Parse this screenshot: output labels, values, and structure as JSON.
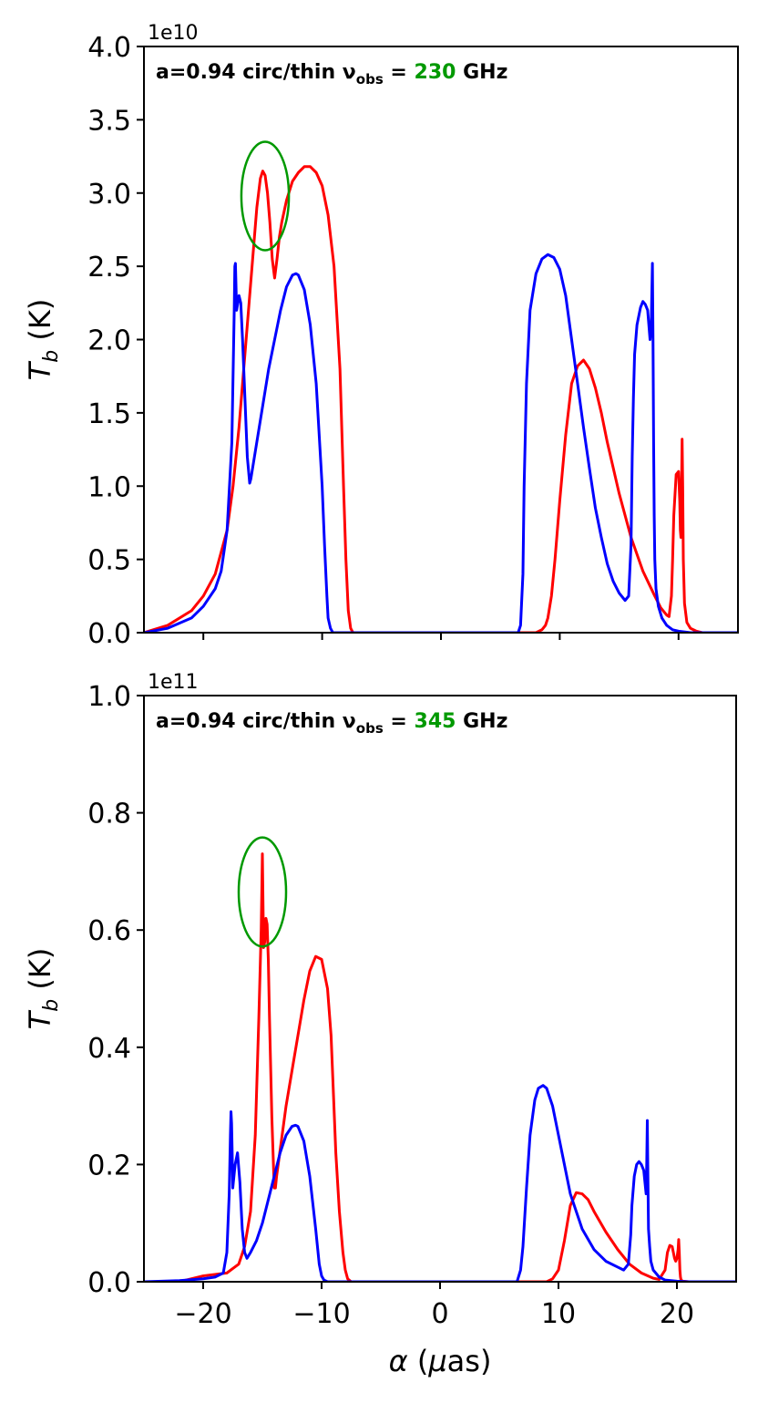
{
  "chart_data": [
    {
      "type": "line",
      "annotation": {
        "prefix": "a=0.94 circ/thin ",
        "nu": "ν",
        "sub": "obs",
        "eq": " = ",
        "freq": "230",
        "unit": " GHz",
        "freq_color": "#009900"
      },
      "ylabel": "T",
      "ylabel_sub": "b",
      "ylabel_unit": " (K)",
      "offset_text": "1e10",
      "xlim": [
        -25,
        25
      ],
      "ylim": [
        0,
        4.0
      ],
      "yticks": [
        "0.0",
        "0.5",
        "1.0",
        "1.5",
        "2.0",
        "2.5",
        "3.0",
        "3.5",
        "4.0"
      ],
      "ytick_values": [
        0,
        0.5,
        1.0,
        1.5,
        2.0,
        2.5,
        3.0,
        3.5,
        4.0
      ],
      "xtick_values": [
        -20,
        -10,
        0,
        10,
        20
      ],
      "show_xticklabels": false,
      "series": [
        {
          "color": "#ff0000",
          "x": [
            -25,
            -23,
            -21,
            -20,
            -19,
            -18,
            -17.5,
            -17,
            -16.5,
            -16,
            -15.5,
            -15.2,
            -15,
            -14.8,
            -14.6,
            -14.4,
            -14.2,
            -14,
            -13.8,
            -13.6,
            -13.4,
            -13,
            -12.5,
            -12,
            -11.5,
            -11,
            -10.5,
            -10,
            -9.5,
            -9,
            -8.5,
            -8.2,
            -8,
            -7.8,
            -7.6,
            -7.4,
            -7.2,
            -7,
            -5,
            0,
            8,
            8.5,
            8.8,
            9,
            9.3,
            9.6,
            10,
            10.5,
            11,
            11.5,
            12,
            12.5,
            13,
            13.5,
            14,
            15,
            16,
            17,
            18,
            18.5,
            19,
            19.2,
            19.4,
            19.5,
            19.6,
            19.8,
            20,
            20.1,
            20.15,
            20.2,
            20.25,
            20.3,
            20.35,
            20.4,
            20.5,
            20.7,
            21,
            21.5,
            22,
            25
          ],
          "y": [
            0.0,
            0.05,
            0.15,
            0.25,
            0.4,
            0.7,
            1.0,
            1.4,
            1.9,
            2.4,
            2.9,
            3.1,
            3.15,
            3.12,
            3.0,
            2.8,
            2.55,
            2.42,
            2.55,
            2.7,
            2.8,
            2.95,
            3.08,
            3.14,
            3.18,
            3.18,
            3.14,
            3.05,
            2.85,
            2.5,
            1.8,
            1.0,
            0.5,
            0.15,
            0.03,
            0.0,
            0.0,
            0.0,
            0.0,
            0.0,
            0.0,
            0.02,
            0.05,
            0.1,
            0.25,
            0.5,
            0.9,
            1.35,
            1.7,
            1.82,
            1.86,
            1.8,
            1.67,
            1.5,
            1.3,
            0.95,
            0.65,
            0.42,
            0.25,
            0.17,
            0.12,
            0.11,
            0.25,
            0.5,
            0.8,
            1.08,
            1.1,
            0.9,
            0.7,
            0.65,
            1.0,
            1.32,
            1.0,
            0.5,
            0.2,
            0.07,
            0.03,
            0.01,
            0.0,
            0.0
          ]
        },
        {
          "color": "#0000ff",
          "x": [
            -25,
            -23,
            -21,
            -20,
            -19,
            -18.5,
            -18,
            -17.6,
            -17.4,
            -17.35,
            -17.3,
            -17.2,
            -17.0,
            -16.85,
            -16.7,
            -16.5,
            -16.3,
            -16.1,
            -16.0,
            -15.5,
            -15,
            -14.5,
            -14,
            -13.5,
            -13,
            -12.5,
            -12.2,
            -12,
            -11.5,
            -11,
            -10.5,
            -10,
            -9.8,
            -9.6,
            -9.5,
            -9.3,
            -9.1,
            -9.0,
            -5,
            0,
            6.5,
            6.7,
            6.9,
            7,
            7.2,
            7.5,
            8,
            8.5,
            9,
            9.5,
            10,
            10.5,
            11,
            11.5,
            12,
            12.5,
            13,
            13.5,
            14,
            14.5,
            15,
            15.5,
            15.8,
            16,
            16.1,
            16.2,
            16.3,
            16.5,
            16.8,
            17,
            17.2,
            17.4,
            17.6,
            17.7,
            17.8,
            17.85,
            17.9,
            17.95,
            18.0,
            18.1,
            18.3,
            18.6,
            19.0,
            19.5,
            20,
            21,
            22,
            25
          ],
          "y": [
            0.0,
            0.03,
            0.1,
            0.18,
            0.3,
            0.42,
            0.7,
            1.3,
            2.2,
            2.5,
            2.52,
            2.2,
            2.3,
            2.25,
            2.0,
            1.6,
            1.2,
            1.02,
            1.05,
            1.3,
            1.55,
            1.8,
            2.0,
            2.2,
            2.36,
            2.44,
            2.45,
            2.44,
            2.34,
            2.1,
            1.7,
            1.0,
            0.6,
            0.25,
            0.1,
            0.03,
            0.0,
            0.0,
            0.0,
            0.0,
            0.0,
            0.05,
            0.4,
            1.0,
            1.7,
            2.2,
            2.45,
            2.55,
            2.58,
            2.56,
            2.48,
            2.3,
            2.0,
            1.7,
            1.4,
            1.12,
            0.85,
            0.65,
            0.47,
            0.35,
            0.27,
            0.22,
            0.25,
            0.6,
            1.2,
            1.6,
            1.9,
            2.1,
            2.22,
            2.26,
            2.24,
            2.2,
            2.0,
            2.1,
            2.52,
            2.0,
            1.3,
            0.8,
            0.5,
            0.3,
            0.18,
            0.1,
            0.05,
            0.02,
            0.01,
            0.0,
            0.0,
            0.0
          ]
        }
      ],
      "ellipse": {
        "cx": -14.8,
        "cy": 2.98,
        "rx": 2.0,
        "ry": 0.37,
        "color": "#009900"
      }
    },
    {
      "type": "line",
      "annotation": {
        "prefix": "a=0.94 circ/thin ",
        "nu": "ν",
        "sub": "obs",
        "eq": " = ",
        "freq": "345",
        "unit": " GHz",
        "freq_color": "#009900"
      },
      "ylabel": "T",
      "ylabel_sub": "b",
      "ylabel_unit": " (K)",
      "offset_text": "1e11",
      "xlabel_greek": "α",
      "xlabel_unit": " (",
      "xlabel_mu": "μ",
      "xlabel_rest": "as)",
      "xlim": [
        -25,
        25
      ],
      "ylim": [
        0,
        1.0
      ],
      "yticks": [
        "0.0",
        "0.2",
        "0.4",
        "0.6",
        "0.8",
        "1.0"
      ],
      "ytick_values": [
        0,
        0.2,
        0.4,
        0.6,
        0.8,
        1.0
      ],
      "xticks": [
        "−20",
        "−10",
        "0",
        "10",
        "20"
      ],
      "xtick_values": [
        -20,
        -10,
        0,
        10,
        20
      ],
      "show_xticklabels": true,
      "series": [
        {
          "color": "#ff0000",
          "x": [
            -25,
            -22,
            -20,
            -18,
            -17,
            -16.5,
            -16,
            -15.6,
            -15.3,
            -15.1,
            -15.0,
            -14.95,
            -14.9,
            -14.8,
            -14.7,
            -14.6,
            -14.5,
            -14.4,
            -14.2,
            -14.0,
            -13.9,
            -13.8,
            -13.6,
            -13.4,
            -13,
            -12.5,
            -12,
            -11.5,
            -11,
            -10.5,
            -10,
            -9.5,
            -9.2,
            -9,
            -8.8,
            -8.5,
            -8.2,
            -8,
            -7.8,
            -7.5,
            -5,
            0,
            9.0,
            9.5,
            10,
            10.5,
            11,
            11.5,
            12,
            12.5,
            13,
            14,
            15,
            16,
            17,
            18,
            18.5,
            19,
            19.2,
            19.4,
            19.6,
            19.7,
            19.8,
            19.9,
            20.0,
            20.1,
            20.15,
            20.2,
            20.25,
            20.3,
            20.35,
            20.5,
            21,
            25
          ],
          "y": [
            0.0,
            0.0,
            0.01,
            0.015,
            0.03,
            0.06,
            0.12,
            0.25,
            0.45,
            0.6,
            0.73,
            0.65,
            0.57,
            0.58,
            0.62,
            0.61,
            0.55,
            0.45,
            0.28,
            0.16,
            0.16,
            0.18,
            0.21,
            0.24,
            0.3,
            0.36,
            0.42,
            0.48,
            0.53,
            0.555,
            0.55,
            0.5,
            0.42,
            0.32,
            0.22,
            0.12,
            0.05,
            0.02,
            0.005,
            0.0,
            0.0,
            0.0,
            0.0,
            0.005,
            0.02,
            0.07,
            0.13,
            0.152,
            0.15,
            0.14,
            0.12,
            0.085,
            0.055,
            0.03,
            0.015,
            0.006,
            0.004,
            0.02,
            0.05,
            0.062,
            0.06,
            0.05,
            0.04,
            0.035,
            0.04,
            0.055,
            0.072,
            0.05,
            0.02,
            0.008,
            0.003,
            0.001,
            0.0,
            0.0
          ]
        },
        {
          "color": "#0000ff",
          "x": [
            -25,
            -22,
            -20,
            -19,
            -18.3,
            -18,
            -17.8,
            -17.7,
            -17.65,
            -17.6,
            -17.55,
            -17.5,
            -17.3,
            -17.1,
            -16.9,
            -16.7,
            -16.5,
            -16.3,
            -16,
            -15.5,
            -15,
            -14.5,
            -14,
            -13.5,
            -13,
            -12.5,
            -12.2,
            -12,
            -11.5,
            -11,
            -10.5,
            -10.2,
            -10,
            -9.8,
            -9.5,
            -9,
            -5,
            0,
            6.5,
            6.8,
            7.0,
            7.3,
            7.6,
            8,
            8.3,
            8.7,
            9,
            9.5,
            10,
            10.5,
            11,
            11.5,
            12,
            13,
            14,
            15,
            15.5,
            15.9,
            16.1,
            16.2,
            16.4,
            16.6,
            16.8,
            17.0,
            17.2,
            17.3,
            17.4,
            17.45,
            17.5,
            17.55,
            17.6,
            17.7,
            17.8,
            18.0,
            18.5,
            19,
            20,
            21,
            25
          ],
          "y": [
            0.0,
            0.002,
            0.005,
            0.008,
            0.015,
            0.05,
            0.15,
            0.25,
            0.29,
            0.27,
            0.22,
            0.16,
            0.2,
            0.22,
            0.17,
            0.09,
            0.05,
            0.04,
            0.05,
            0.07,
            0.1,
            0.14,
            0.18,
            0.22,
            0.25,
            0.265,
            0.267,
            0.265,
            0.24,
            0.18,
            0.09,
            0.03,
            0.01,
            0.003,
            0.0,
            0.0,
            0.0,
            0.0,
            0.0,
            0.02,
            0.06,
            0.16,
            0.25,
            0.31,
            0.33,
            0.335,
            0.33,
            0.3,
            0.25,
            0.2,
            0.15,
            0.12,
            0.09,
            0.055,
            0.035,
            0.025,
            0.02,
            0.03,
            0.08,
            0.13,
            0.18,
            0.2,
            0.205,
            0.2,
            0.19,
            0.17,
            0.15,
            0.2,
            0.275,
            0.18,
            0.09,
            0.06,
            0.035,
            0.02,
            0.008,
            0.003,
            0.001,
            0.0,
            0.0
          ]
        }
      ],
      "ellipse": {
        "cx": -15.0,
        "cy": 0.665,
        "rx": 2.0,
        "ry": 0.093,
        "color": "#009900"
      }
    }
  ]
}
